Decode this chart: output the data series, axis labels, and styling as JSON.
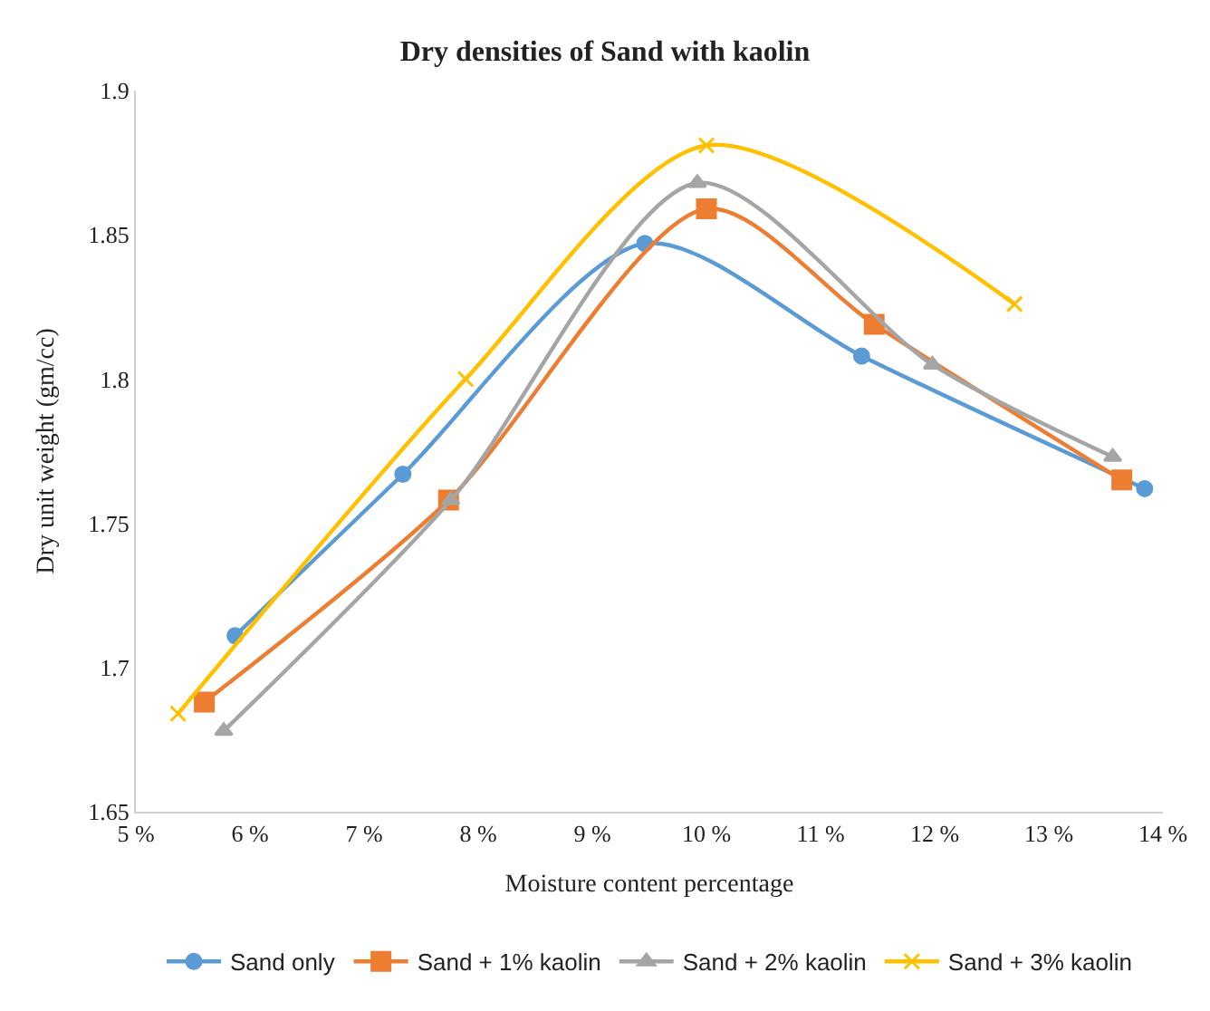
{
  "chart_data": {
    "type": "line",
    "title": "Dry densities of Sand with kaolin",
    "xlabel": "Moisture content percentage",
    "ylabel": "Dry unit weight (gm/cc)",
    "xlim": [
      5,
      14
    ],
    "xticks": [
      {
        "value": 5,
        "label": "5 %"
      },
      {
        "value": 6,
        "label": "6 %"
      },
      {
        "value": 7,
        "label": "7 %"
      },
      {
        "value": 8,
        "label": "8 %"
      },
      {
        "value": 9,
        "label": "9 %"
      },
      {
        "value": 10,
        "label": "10 %"
      },
      {
        "value": 11,
        "label": "11 %"
      },
      {
        "value": 12,
        "label": "12 %"
      },
      {
        "value": 13,
        "label": "13 %"
      },
      {
        "value": 14,
        "label": "14 %"
      }
    ],
    "ylim": [
      1.65,
      1.9
    ],
    "yticks": [
      1.65,
      1.7,
      1.75,
      1.8,
      1.85,
      1.9
    ],
    "grid": false,
    "legend": "bottom",
    "line_style": "solid",
    "series": [
      {
        "name": "Sand only",
        "color": "#5b9bd5",
        "marker": "circle",
        "x": [
          5.87,
          7.34,
          9.46,
          11.36,
          13.84
        ],
        "values": [
          1.711,
          1.767,
          1.847,
          1.808,
          1.762
        ]
      },
      {
        "name": "Sand + 1% kaolin",
        "color": "#ed7d31",
        "marker": "square",
        "x": [
          5.6,
          7.74,
          10.0,
          11.47,
          13.64
        ],
        "values": [
          1.688,
          1.758,
          1.859,
          1.819,
          1.765
        ]
      },
      {
        "name": "Sand + 2% kaolin",
        "color": "#a5a5a5",
        "marker": "triangle",
        "x": [
          5.77,
          7.76,
          9.92,
          11.98,
          13.56
        ],
        "values": [
          1.678,
          1.758,
          1.868,
          1.805,
          1.773
        ]
      },
      {
        "name": "Sand + 3% kaolin",
        "color": "#ffc000",
        "marker": "cross",
        "x": [
          5.37,
          7.89,
          10.0,
          12.7
        ],
        "values": [
          1.684,
          1.8,
          1.881,
          1.826
        ]
      }
    ]
  }
}
